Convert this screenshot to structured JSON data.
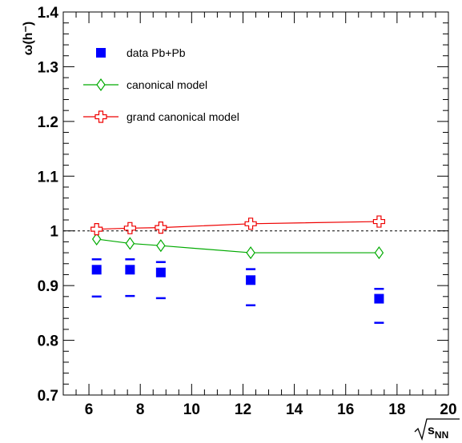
{
  "chart_data": {
    "type": "scatter",
    "xlim": [
      5,
      20
    ],
    "ylim": [
      0.7,
      1.4
    ],
    "x_ticks": [
      6,
      8,
      10,
      12,
      14,
      16,
      18,
      20
    ],
    "y_ticks": [
      0.7,
      0.8,
      0.9,
      1,
      1.1,
      1.2,
      1.3,
      1.4
    ],
    "ylabel": "ω(h⁻)",
    "xlabel": "√sNN",
    "reference_line": {
      "y": 1.0,
      "style": "dashed"
    },
    "legend_position": "top-left",
    "series": [
      {
        "name": "data Pb+Pb",
        "marker": "filled-square",
        "color": "#0000ff",
        "x": [
          6.3,
          7.6,
          8.8,
          12.3,
          17.3
        ],
        "y": [
          0.929,
          0.929,
          0.924,
          0.91,
          0.876
        ],
        "sys_upper": [
          0.948,
          0.948,
          0.943,
          0.93,
          0.894
        ],
        "sys_lower": [
          0.88,
          0.881,
          0.877,
          0.864,
          0.832
        ]
      },
      {
        "name": "canonical model",
        "marker": "open-diamond",
        "color": "#00aa00",
        "line": true,
        "x": [
          6.3,
          7.6,
          8.8,
          12.3,
          17.3
        ],
        "y": [
          0.985,
          0.977,
          0.973,
          0.96,
          0.96
        ]
      },
      {
        "name": "grand canonical model",
        "marker": "open-cross",
        "color": "#ee0000",
        "line": true,
        "x": [
          6.3,
          7.6,
          8.8,
          12.3,
          17.3
        ],
        "y": [
          1.003,
          1.005,
          1.006,
          1.013,
          1.017
        ]
      }
    ]
  }
}
